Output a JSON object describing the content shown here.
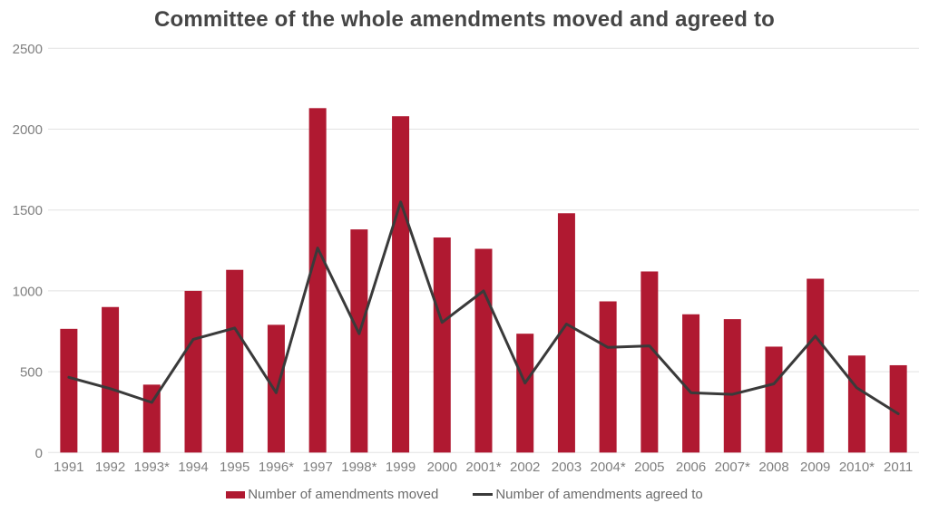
{
  "chart_data": {
    "type": "bar+line",
    "title": "Committee of the whole amendments moved and agreed to",
    "categories": [
      "1991",
      "1992",
      "1993*",
      "1994",
      "1995",
      "1996*",
      "1997",
      "1998*",
      "1999",
      "2000",
      "2001*",
      "2002",
      "2003",
      "2004*",
      "2005",
      "2006",
      "2007*",
      "2008",
      "2009",
      "2010*",
      "2011"
    ],
    "series": [
      {
        "name": "Number of amendments moved",
        "type": "bar",
        "color": "#b01931",
        "values": [
          765,
          900,
          420,
          1000,
          1130,
          790,
          2130,
          1380,
          2080,
          1330,
          1260,
          735,
          1480,
          935,
          1120,
          855,
          825,
          655,
          1075,
          600,
          540
        ]
      },
      {
        "name": "Number of amendments agreed to",
        "type": "line",
        "color": "#3a3a3a",
        "values": [
          465,
          395,
          310,
          700,
          770,
          370,
          1265,
          735,
          1550,
          805,
          1000,
          430,
          795,
          650,
          660,
          370,
          360,
          425,
          720,
          400,
          240
        ]
      }
    ],
    "ylim": [
      0,
      2500
    ],
    "yticks": [
      0,
      500,
      1000,
      1500,
      2000,
      2500
    ],
    "grid": true,
    "legend_position": "bottom",
    "colors": {
      "grid": "#e2e2e2",
      "axis_text": "#7f7f7f",
      "title_text": "#454545",
      "legend_text": "#6b6b6b",
      "background": "#ffffff"
    }
  }
}
